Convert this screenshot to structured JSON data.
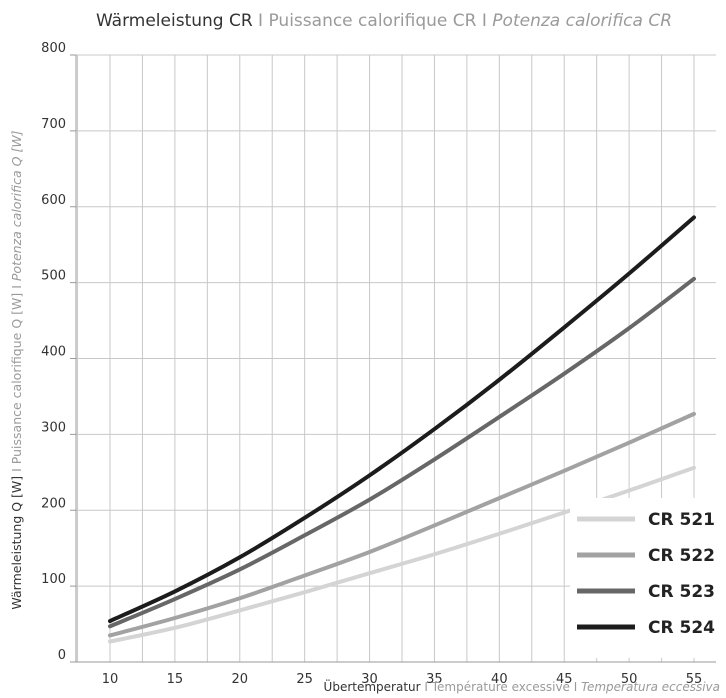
{
  "chart_data": {
    "type": "line",
    "title": {
      "de": "Wärmeleistung CR",
      "sep1": " I ",
      "fr": "Puissance calorifique CR",
      "sep2": " I ",
      "it": "Potenza calorifica CR"
    },
    "xlabel": {
      "de": "Übertemperatur",
      "sep1": " I ",
      "fr": "Température excessive",
      "sep2": " I ",
      "it": "Temperatura eccessiva"
    },
    "ylabel": {
      "de": "Wärmeleistung Q [W]",
      "sep1": " I ",
      "fr": "Puissance calorifique Q [W]",
      "sep2": " I ",
      "it": "Potenza calorifica Q [W]"
    },
    "xlim": [
      5,
      57
    ],
    "ylim": [
      0,
      800
    ],
    "xticks": [
      10,
      15,
      20,
      25,
      30,
      35,
      40,
      45,
      50,
      55
    ],
    "yticks": [
      0,
      100,
      200,
      300,
      400,
      500,
      600,
      700,
      800
    ],
    "grid": true,
    "legend_position": "bottom-right",
    "x": [
      10,
      15,
      20,
      25,
      30,
      35,
      40,
      45,
      50,
      55
    ],
    "series": [
      {
        "name": "CR 521",
        "color": "#d4d4d4",
        "values": [
          27,
          45,
          68,
          92,
          117,
          142,
          169,
          197,
          226,
          256
        ]
      },
      {
        "name": "CR 522",
        "color": "#a2a2a2",
        "values": [
          35,
          58,
          84,
          114,
          145,
          180,
          216,
          252,
          289,
          327
        ]
      },
      {
        "name": "CR 523",
        "color": "#676767",
        "values": [
          47,
          83,
          122,
          167,
          214,
          267,
          323,
          380,
          440,
          505
        ]
      },
      {
        "name": "CR 524",
        "color": "#1c1c1c",
        "values": [
          54,
          93,
          138,
          190,
          246,
          307,
          372,
          441,
          512,
          586
        ]
      }
    ]
  }
}
